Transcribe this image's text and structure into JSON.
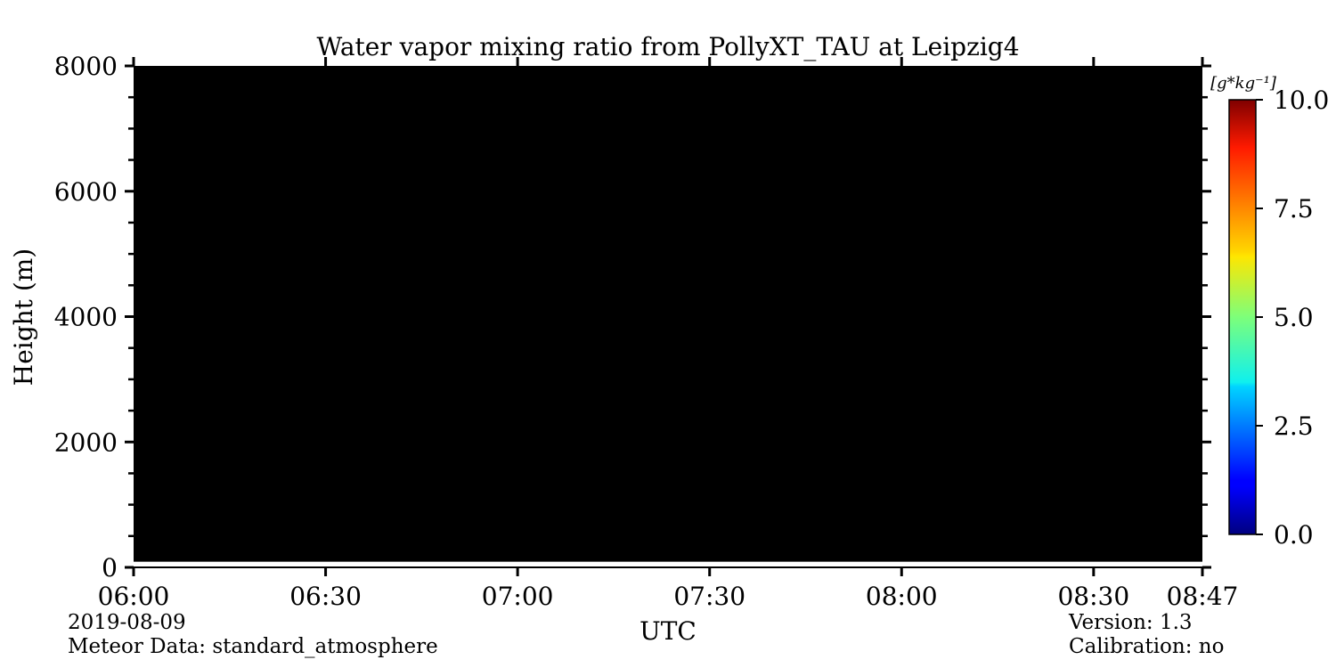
{
  "chart_data": {
    "type": "heatmap",
    "title": "Water vapor mixing ratio from PollyXT_TAU at Leipzig4",
    "xlabel": "UTC",
    "ylabel": "Height (m)",
    "x_ticks": [
      "06:00",
      "06:30",
      "07:00",
      "07:30",
      "08:00",
      "08:30",
      "08:47"
    ],
    "x_tick_minutes": [
      0,
      30,
      60,
      90,
      120,
      150,
      167
    ],
    "xlim_minutes": [
      0,
      167
    ],
    "y_ticks": [
      "0",
      "2000",
      "4000",
      "6000",
      "8000"
    ],
    "ylim": [
      0,
      8000
    ],
    "y_minor_step": 500,
    "data_region": {
      "y_from": 90,
      "y_to": 8000,
      "fill_color": "#000000"
    },
    "colorbar": {
      "label": "[g*kg⁻¹]",
      "range": [
        0.0,
        10.0
      ],
      "ticks": [
        "0.0",
        "2.5",
        "5.0",
        "7.5",
        "10.0"
      ],
      "colormap": "jet"
    }
  },
  "footer": {
    "date": "2019-08-09",
    "meteor": "Meteor Data: standard_atmosphere",
    "version": "Version: 1.3",
    "calibration": "Calibration: no"
  }
}
